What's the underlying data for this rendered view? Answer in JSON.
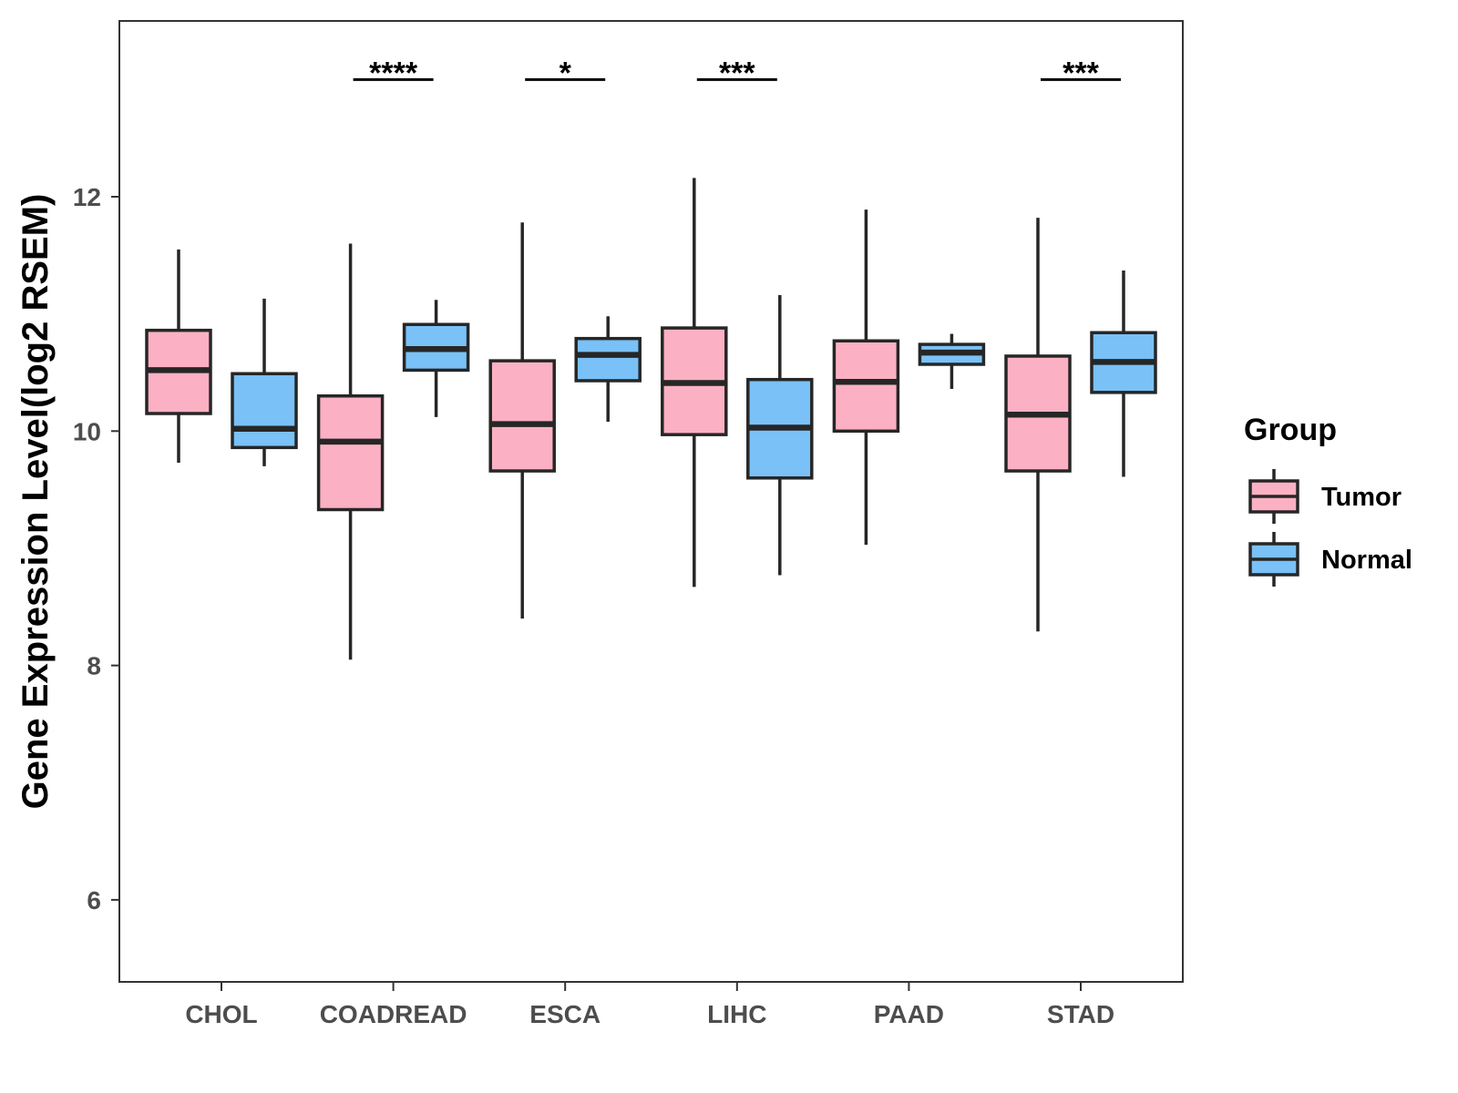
{
  "chart_data": {
    "type": "boxplot",
    "title": "",
    "xlabel": "",
    "ylabel": "Gene Expression Level(log2 RSEM)",
    "ylim": [
      5.3,
      13.5
    ],
    "yticks": [
      6,
      8,
      10,
      12
    ],
    "categories": [
      "CHOL",
      "COADREAD",
      "ESCA",
      "LIHC",
      "PAAD",
      "STAD"
    ],
    "series": [
      {
        "name": "Tumor",
        "color": "#FBB1C3",
        "boxes": [
          {
            "category": "CHOL",
            "whisker_low": 9.73,
            "q1": 10.15,
            "median": 10.52,
            "q3": 10.86,
            "whisker_high": 11.55
          },
          {
            "category": "COADREAD",
            "whisker_low": 8.05,
            "q1": 9.33,
            "median": 9.91,
            "q3": 10.3,
            "whisker_high": 11.6
          },
          {
            "category": "ESCA",
            "whisker_low": 8.4,
            "q1": 9.66,
            "median": 10.06,
            "q3": 10.6,
            "whisker_high": 11.78
          },
          {
            "category": "LIHC",
            "whisker_low": 8.67,
            "q1": 9.97,
            "median": 10.41,
            "q3": 10.88,
            "whisker_high": 12.16
          },
          {
            "category": "PAAD",
            "whisker_low": 9.03,
            "q1": 10.0,
            "median": 10.42,
            "q3": 10.77,
            "whisker_high": 11.89
          },
          {
            "category": "STAD",
            "whisker_low": 8.29,
            "q1": 9.66,
            "median": 10.14,
            "q3": 10.64,
            "whisker_high": 11.82
          }
        ]
      },
      {
        "name": "Normal",
        "color": "#79C1F7",
        "boxes": [
          {
            "category": "CHOL",
            "whisker_low": 9.7,
            "q1": 9.86,
            "median": 10.02,
            "q3": 10.49,
            "whisker_high": 11.13
          },
          {
            "category": "COADREAD",
            "whisker_low": 10.12,
            "q1": 10.52,
            "median": 10.7,
            "q3": 10.91,
            "whisker_high": 11.12
          },
          {
            "category": "ESCA",
            "whisker_low": 10.08,
            "q1": 10.43,
            "median": 10.65,
            "q3": 10.79,
            "whisker_high": 10.98
          },
          {
            "category": "LIHC",
            "whisker_low": 8.77,
            "q1": 9.6,
            "median": 10.03,
            "q3": 10.44,
            "whisker_high": 11.16
          },
          {
            "category": "PAAD",
            "whisker_low": 10.36,
            "q1": 10.57,
            "median": 10.67,
            "q3": 10.74,
            "whisker_high": 10.83
          },
          {
            "category": "STAD",
            "whisker_low": 9.61,
            "q1": 10.33,
            "median": 10.59,
            "q3": 10.84,
            "whisker_high": 11.37
          }
        ]
      }
    ],
    "significance": [
      {
        "category": "COADREAD",
        "label": "****",
        "y": 13.0
      },
      {
        "category": "ESCA",
        "label": "*",
        "y": 13.0
      },
      {
        "category": "LIHC",
        "label": "***",
        "y": 13.0
      },
      {
        "category": "STAD",
        "label": "***",
        "y": 13.0
      }
    ],
    "legend": {
      "title": "Group",
      "position": "right",
      "items": [
        "Tumor",
        "Normal"
      ]
    },
    "grid": false
  }
}
